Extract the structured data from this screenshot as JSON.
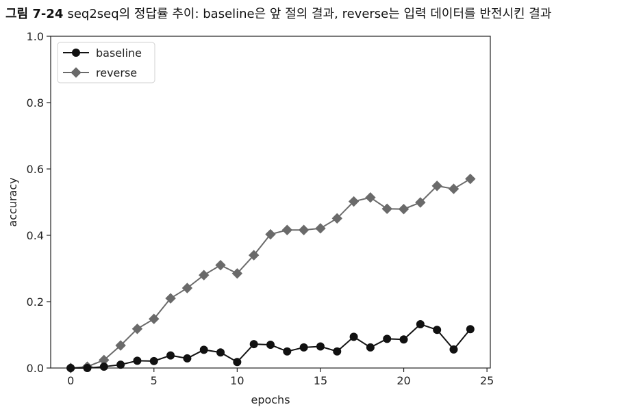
{
  "caption": {
    "figure_label": "그림 7-24",
    "text": "seq2seq의 정답률 추이: baseline은 앞 절의 결과, reverse는 입력 데이터를 반전시킨 결과"
  },
  "chart_data": {
    "type": "line",
    "xlabel": "epochs",
    "ylabel": "accuracy",
    "xlim": [
      -1.2,
      25.2
    ],
    "ylim": [
      0,
      1.0
    ],
    "xticks": [
      0,
      5,
      10,
      15,
      20,
      25
    ],
    "yticks": [
      0.0,
      0.2,
      0.4,
      0.6,
      0.8,
      1.0
    ],
    "xtick_labels": [
      "0",
      "5",
      "10",
      "15",
      "20",
      "25"
    ],
    "ytick_labels": [
      "0.0",
      "0.2",
      "0.4",
      "0.6",
      "0.8",
      "1.0"
    ],
    "grid": false,
    "legend": "top-left",
    "x": [
      0,
      1,
      2,
      3,
      4,
      5,
      6,
      7,
      8,
      9,
      10,
      11,
      12,
      13,
      14,
      15,
      16,
      17,
      18,
      19,
      20,
      21,
      22,
      23,
      24
    ],
    "series": [
      {
        "name": "baseline",
        "color": "#111111",
        "marker": "circle",
        "values": [
          0.0,
          0.0,
          0.004,
          0.01,
          0.022,
          0.021,
          0.038,
          0.029,
          0.055,
          0.047,
          0.018,
          0.072,
          0.07,
          0.05,
          0.062,
          0.065,
          0.05,
          0.094,
          0.062,
          0.088,
          0.086,
          0.132,
          0.115,
          0.056,
          0.117
        ]
      },
      {
        "name": "reverse",
        "color": "#6a6a6a",
        "marker": "diamond",
        "values": [
          0.0,
          0.004,
          0.024,
          0.068,
          0.118,
          0.148,
          0.21,
          0.241,
          0.28,
          0.31,
          0.285,
          0.34,
          0.403,
          0.416,
          0.416,
          0.421,
          0.451,
          0.502,
          0.514,
          0.48,
          0.479,
          0.499,
          0.549,
          0.54,
          0.57
        ]
      }
    ]
  }
}
